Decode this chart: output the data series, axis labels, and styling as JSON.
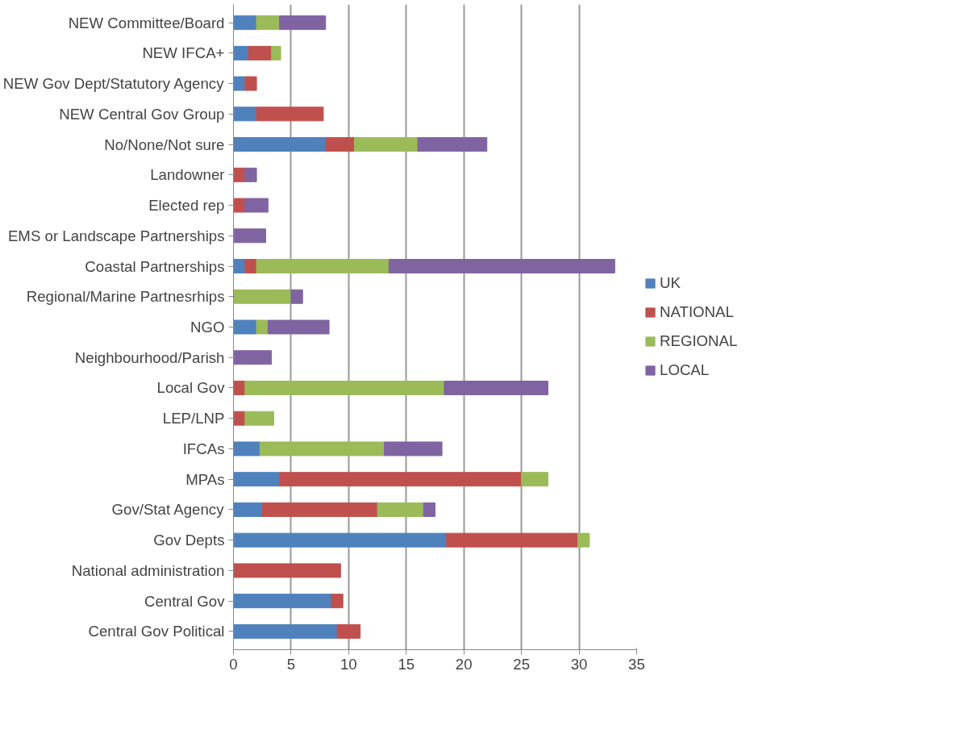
{
  "chart_data": {
    "type": "bar",
    "orientation": "horizontal",
    "stacked": true,
    "categories": [
      "NEW Committee/Board",
      "NEW IFCA+",
      "NEW Gov Dept/Statutory Agency",
      "NEW Central Gov Group",
      "No/None/Not sure",
      "Landowner",
      "Elected rep",
      "EMS or Landscape Partnerships",
      "Coastal Partnerships",
      "Regional/Marine Partnesrhips",
      "NGO",
      "Neighbourhood/Parish",
      "Local Gov",
      "LEP/LNP",
      "IFCAs",
      "MPAs",
      "Gov/Stat Agency",
      "Gov Depts",
      "National administration",
      "Central Gov",
      "Central Gov Political"
    ],
    "series": [
      {
        "name": "UK",
        "color": "#4f81bd",
        "values": [
          2,
          1.3,
          1,
          2,
          8,
          null,
          null,
          null,
          1,
          null,
          2,
          null,
          null,
          null,
          2.3,
          4,
          2.5,
          18.5,
          null,
          8.5,
          9
        ]
      },
      {
        "name": "NATIONAL",
        "color": "#c0504d",
        "values": [
          null,
          2,
          1,
          5.8,
          2.5,
          1,
          1,
          null,
          1,
          null,
          null,
          null,
          1,
          1,
          null,
          21,
          10,
          11.4,
          9.3,
          1,
          2
        ]
      },
      {
        "name": "REGIONAL",
        "color": "#9bbb59",
        "values": [
          2,
          0.8,
          null,
          null,
          5.5,
          null,
          null,
          null,
          11.5,
          5,
          1,
          null,
          17.3,
          2.5,
          10.8,
          2.3,
          4,
          1,
          null,
          null,
          null
        ]
      },
      {
        "name": "LOCAL",
        "color": "#8064a2",
        "values": [
          4,
          null,
          null,
          null,
          6,
          1,
          2,
          2.8,
          19.6,
          1,
          5.3,
          3.3,
          9,
          null,
          5,
          null,
          1,
          null,
          null,
          null,
          null
        ]
      }
    ],
    "xlim": [
      0,
      35
    ],
    "xticks": [
      0,
      5,
      10,
      15,
      20,
      25,
      30,
      35
    ],
    "grid": "x",
    "legend": "right"
  }
}
